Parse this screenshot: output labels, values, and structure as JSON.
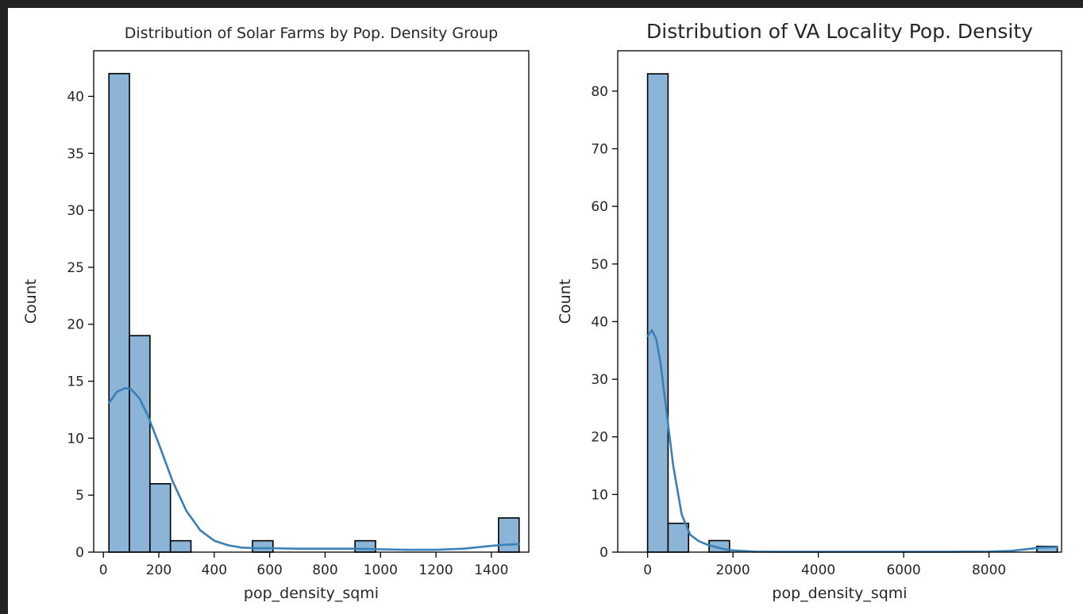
{
  "chart_data": [
    {
      "type": "bar",
      "subtype": "histogram",
      "title": "Distribution of Solar Farms by Pop. Density Group",
      "xlabel": "pop_density_sqmi",
      "ylabel": "Count",
      "xlim": [
        -35,
        1535
      ],
      "ylim": [
        0,
        44
      ],
      "xticks": [
        0,
        200,
        400,
        600,
        800,
        1000,
        1200,
        1400
      ],
      "yticks": [
        0,
        5,
        10,
        15,
        20,
        25,
        30,
        35,
        40
      ],
      "grid": false,
      "bins": [
        {
          "x0": 20,
          "x1": 94,
          "count": 42
        },
        {
          "x0": 94,
          "x1": 168,
          "count": 19
        },
        {
          "x0": 168,
          "x1": 242,
          "count": 6
        },
        {
          "x0": 242,
          "x1": 316,
          "count": 1
        },
        {
          "x0": 316,
          "x1": 390,
          "count": 0
        },
        {
          "x0": 390,
          "x1": 464,
          "count": 0
        },
        {
          "x0": 464,
          "x1": 538,
          "count": 0
        },
        {
          "x0": 538,
          "x1": 612,
          "count": 1
        },
        {
          "x0": 612,
          "x1": 686,
          "count": 0
        },
        {
          "x0": 686,
          "x1": 760,
          "count": 0
        },
        {
          "x0": 760,
          "x1": 834,
          "count": 0
        },
        {
          "x0": 834,
          "x1": 908,
          "count": 0
        },
        {
          "x0": 908,
          "x1": 982,
          "count": 1
        },
        {
          "x0": 982,
          "x1": 1056,
          "count": 0
        },
        {
          "x0": 1056,
          "x1": 1130,
          "count": 0
        },
        {
          "x0": 1130,
          "x1": 1204,
          "count": 0
        },
        {
          "x0": 1204,
          "x1": 1278,
          "count": 0
        },
        {
          "x0": 1278,
          "x1": 1352,
          "count": 0
        },
        {
          "x0": 1352,
          "x1": 1426,
          "count": 0
        },
        {
          "x0": 1426,
          "x1": 1500,
          "count": 3
        }
      ],
      "kde": {
        "x": [
          20,
          50,
          80,
          100,
          130,
          160,
          200,
          250,
          300,
          350,
          400,
          450,
          500,
          550,
          600,
          700,
          800,
          900,
          1000,
          1100,
          1200,
          1300,
          1400,
          1450,
          1500
        ],
        "y": [
          13.1,
          14.1,
          14.4,
          14.3,
          13.5,
          12.0,
          9.5,
          6.2,
          3.6,
          1.9,
          1.0,
          0.6,
          0.4,
          0.35,
          0.35,
          0.3,
          0.3,
          0.3,
          0.25,
          0.2,
          0.2,
          0.3,
          0.55,
          0.65,
          0.7
        ]
      },
      "colors": {
        "bar": "#8cb4d6",
        "edge": "#000000",
        "kde": "#3a80b8"
      }
    },
    {
      "type": "bar",
      "subtype": "histogram",
      "title": "Distribution of VA Locality Pop. Density",
      "xlabel": "pop_density_sqmi",
      "ylabel": "Count",
      "xlim": [
        -700,
        9700
      ],
      "ylim": [
        0,
        87
      ],
      "xticks": [
        0,
        2000,
        4000,
        6000,
        8000
      ],
      "yticks": [
        0,
        10,
        20,
        30,
        40,
        50,
        60,
        70,
        80
      ],
      "grid": false,
      "bins": [
        {
          "x0": 0,
          "x1": 480,
          "count": 83
        },
        {
          "x0": 480,
          "x1": 960,
          "count": 5
        },
        {
          "x0": 960,
          "x1": 1440,
          "count": 0
        },
        {
          "x0": 1440,
          "x1": 1920,
          "count": 2
        },
        {
          "x0": 1920,
          "x1": 2400,
          "count": 0
        },
        {
          "x0": 2400,
          "x1": 2880,
          "count": 0
        },
        {
          "x0": 2880,
          "x1": 3360,
          "count": 0
        },
        {
          "x0": 3360,
          "x1": 3840,
          "count": 0
        },
        {
          "x0": 3840,
          "x1": 4320,
          "count": 0
        },
        {
          "x0": 4320,
          "x1": 4800,
          "count": 0
        },
        {
          "x0": 4800,
          "x1": 5280,
          "count": 0
        },
        {
          "x0": 5280,
          "x1": 5760,
          "count": 0
        },
        {
          "x0": 5760,
          "x1": 6240,
          "count": 0
        },
        {
          "x0": 6240,
          "x1": 6720,
          "count": 0
        },
        {
          "x0": 6720,
          "x1": 7200,
          "count": 0
        },
        {
          "x0": 7200,
          "x1": 7680,
          "count": 0
        },
        {
          "x0": 7680,
          "x1": 8160,
          "count": 0
        },
        {
          "x0": 8160,
          "x1": 8640,
          "count": 0
        },
        {
          "x0": 8640,
          "x1": 9120,
          "count": 0
        },
        {
          "x0": 9120,
          "x1": 9600,
          "count": 1
        }
      ],
      "kde": {
        "x": [
          0,
          100,
          200,
          300,
          400,
          600,
          800,
          1000,
          1200,
          1400,
          1600,
          1800,
          2000,
          2500,
          3000,
          4000,
          5000,
          6000,
          7000,
          8000,
          8500,
          9000,
          9200,
          9600
        ],
        "y": [
          37.5,
          38.5,
          37,
          33,
          27,
          15,
          6.5,
          3,
          1.9,
          1.3,
          0.9,
          0.5,
          0.3,
          0.1,
          0.05,
          0.05,
          0.05,
          0.05,
          0.05,
          0.1,
          0.2,
          0.6,
          0.8,
          0.9
        ]
      },
      "colors": {
        "bar": "#8cb4d6",
        "edge": "#000000",
        "kde": "#3a80b8"
      }
    }
  ]
}
